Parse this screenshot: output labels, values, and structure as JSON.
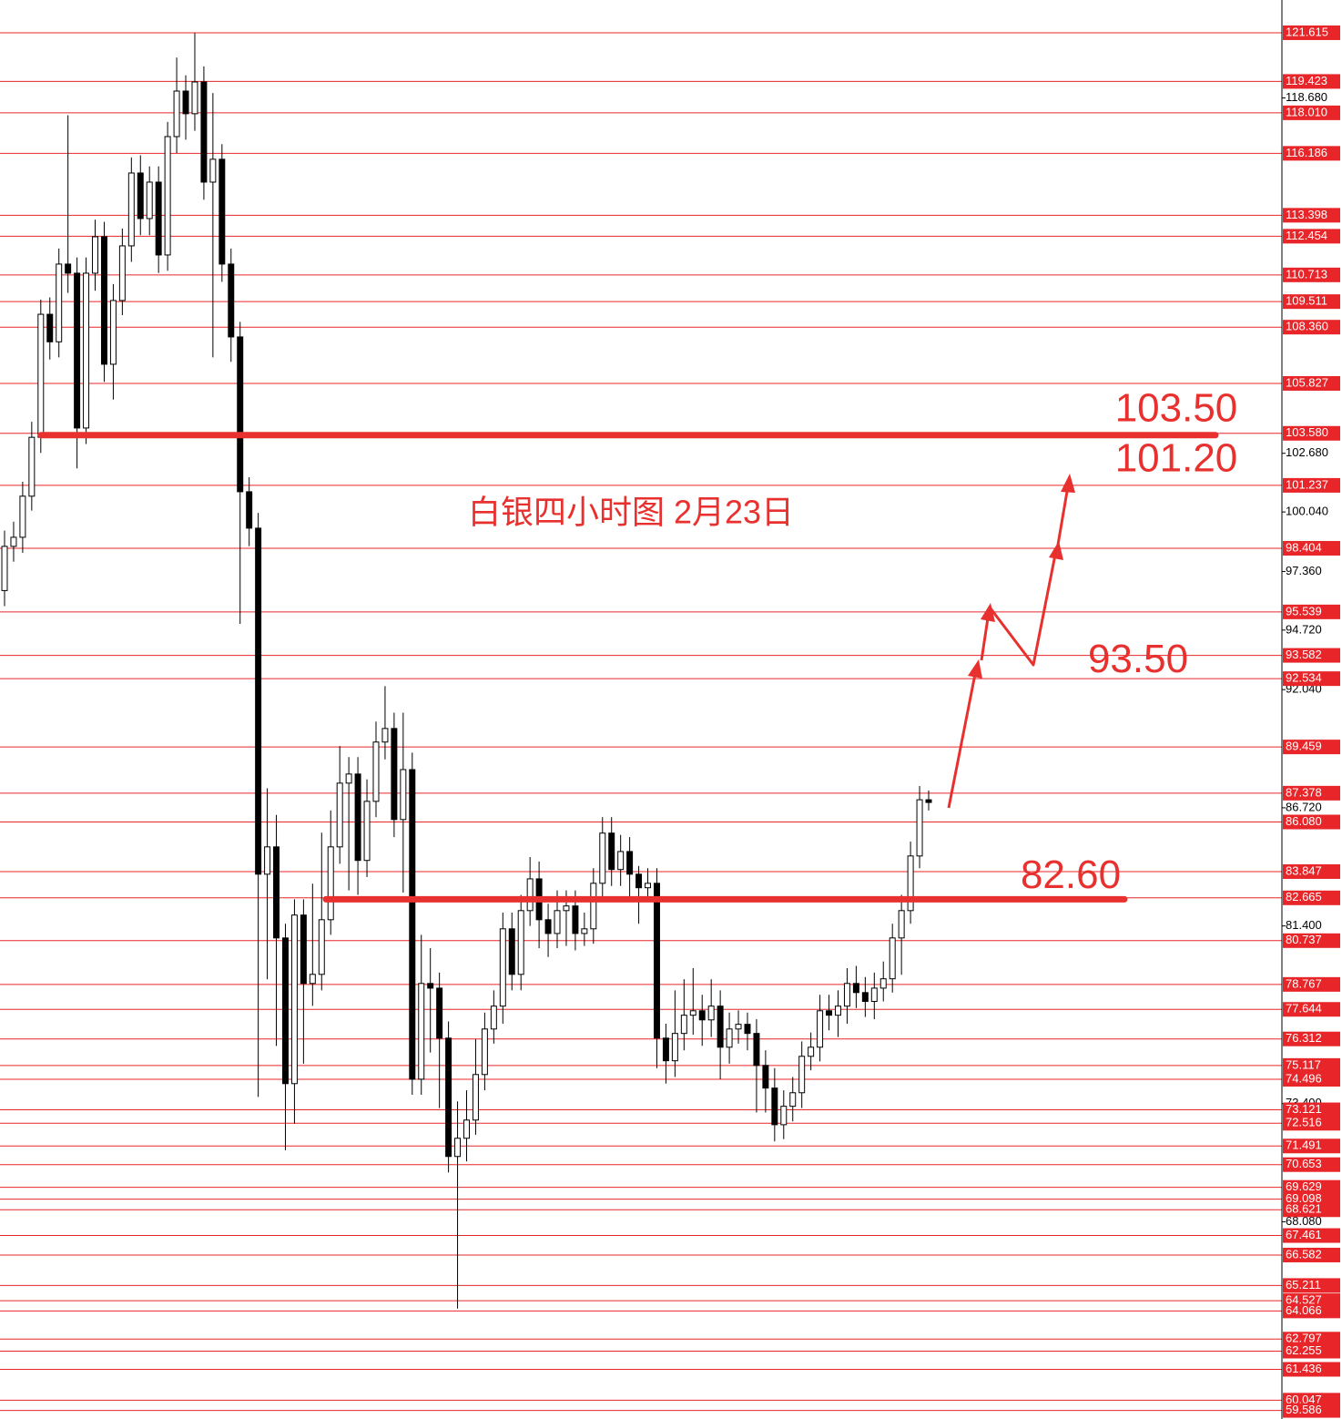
{
  "chart_data": {
    "type": "candlestick",
    "title": "白银四小时图 2月23日",
    "up_color": "#ffffff",
    "down_color": "#000000",
    "level_color": "#e8262a",
    "ylim": [
      59.2,
      123.09
    ],
    "yticks": [
      {
        "value": 118.68,
        "label": "118.680"
      },
      {
        "value": 102.68,
        "label": "102.680"
      },
      {
        "value": 100.04,
        "label": "100.040"
      },
      {
        "value": 97.36,
        "label": "97.360"
      },
      {
        "value": 94.72,
        "label": "94.720"
      },
      {
        "value": 92.04,
        "label": "92.040"
      },
      {
        "value": 86.72,
        "label": "86.720"
      },
      {
        "value": 81.4,
        "label": "81.400"
      },
      {
        "value": 73.4,
        "label": "73.400"
      },
      {
        "value": 68.08,
        "label": "68.080"
      }
    ],
    "levels": [
      121.615,
      119.423,
      {
        "value": 118.01,
        "label": "118.010"
      },
      116.186,
      113.398,
      112.454,
      110.713,
      109.511,
      {
        "value": 108.36,
        "label": "108.360"
      },
      105.827,
      {
        "value": 103.58,
        "label": "103.580"
      },
      101.237,
      98.404,
      95.539,
      93.582,
      92.534,
      89.459,
      87.378,
      {
        "value": 86.08,
        "label": "86.080"
      },
      83.847,
      82.665,
      80.737,
      78.767,
      77.644,
      76.312,
      75.117,
      74.496,
      73.121,
      72.516,
      71.491,
      70.653,
      69.629,
      69.098,
      68.621,
      67.461,
      66.582,
      65.211,
      64.527,
      64.066,
      62.797,
      62.255,
      61.436,
      60.047,
      59.586
    ],
    "annotations": [
      {
        "label": "103.50",
        "value": 103.5,
        "line": true
      },
      {
        "label": "101.20",
        "value": 101.2,
        "line": false
      },
      {
        "label": "93.50",
        "value": 93.5,
        "line": false
      },
      {
        "label": "82.60",
        "value": 82.6,
        "line": true
      }
    ],
    "open": [
      96.5,
      98.49,
      98.9,
      100.75,
      103.4,
      108.94,
      107.7,
      111.2,
      110.79,
      103.82,
      110.79,
      112.43,
      106.69,
      109.56,
      112.02,
      115.3,
      113.25,
      114.89,
      111.61,
      116.94,
      118.99,
      117.97,
      119.4,
      114.89,
      115.92,
      111.2,
      107.92,
      100.95,
      99.31,
      83.73,
      84.96,
      80.86,
      74.3,
      81.89,
      78.81,
      79.22,
      81.68,
      84.96,
      87.83,
      88.24,
      84.35,
      87.01,
      89.68,
      90.29,
      86.19,
      88.44,
      74.5,
      78.81,
      78.6,
      76.35,
      71.02,
      71.84,
      72.66,
      74.71,
      76.76,
      77.79,
      81.27,
      79.22,
      82.09,
      83.52,
      81.68,
      81.06,
      82.09,
      82.3,
      81.06,
      81.27,
      83.32,
      85.58,
      83.94,
      84.75,
      83.73,
      83.12,
      83.32,
      76.35,
      75.33,
      76.56,
      77.38,
      77.58,
      77.17,
      77.79,
      75.94,
      76.76,
      76.97,
      76.56,
      75.12,
      74.1,
      72.45,
      73.28,
      73.89,
      75.53,
      75.94,
      77.58,
      77.38,
      77.79,
      78.81,
      78.4,
      78.0,
      78.6,
      79.02,
      80.86,
      82.09,
      84.55,
      87.08
    ],
    "high": [
      99.2,
      99.6,
      101.4,
      104.1,
      109.6,
      109.7,
      111.9,
      117.9,
      111.5,
      111.5,
      113.2,
      113.1,
      110.3,
      112.8,
      116.0,
      116.1,
      115.6,
      115.6,
      117.6,
      120.5,
      119.7,
      121.6,
      120.1,
      118.9,
      116.6,
      111.9,
      108.6,
      101.6,
      100.0,
      87.6,
      86.4,
      81.5,
      82.6,
      82.6,
      83.3,
      85.6,
      86.6,
      89.5,
      89.0,
      89.0,
      88.0,
      90.6,
      92.2,
      91.0,
      91.0,
      89.2,
      81.0,
      80.4,
      79.3,
      77.1,
      73.5,
      74.0,
      76.3,
      77.5,
      78.5,
      82.0,
      82.0,
      82.8,
      84.5,
      84.3,
      82.4,
      83.0,
      83.0,
      83.0,
      82.0,
      84.0,
      86.3,
      86.3,
      85.5,
      85.4,
      84.1,
      84.0,
      84.0,
      77.0,
      78.5,
      79.0,
      79.5,
      78.3,
      79.0,
      78.5,
      77.5,
      77.6,
      77.5,
      77.2,
      75.8,
      75.0,
      74.0,
      74.6,
      76.2,
      76.6,
      78.3,
      78.3,
      78.5,
      79.5,
      79.6,
      79.1,
      79.3,
      79.8,
      81.5,
      82.8,
      85.2,
      87.7,
      87.5
    ],
    "low": [
      95.8,
      97.8,
      98.2,
      100.1,
      102.7,
      106.9,
      107.0,
      109.9,
      102.0,
      103.1,
      110.0,
      105.9,
      105.1,
      108.9,
      111.3,
      112.5,
      112.5,
      110.8,
      110.9,
      116.2,
      116.8,
      117.2,
      114.1,
      107.0,
      110.4,
      106.8,
      95.0,
      98.5,
      73.7,
      79.0,
      76.0,
      71.3,
      72.5,
      75.2,
      77.8,
      78.5,
      81.0,
      84.2,
      83.0,
      82.8,
      83.6,
      86.3,
      88.9,
      85.4,
      82.9,
      73.8,
      73.8,
      75.7,
      73.2,
      70.3,
      64.17,
      70.8,
      72.0,
      74.0,
      76.1,
      77.0,
      78.5,
      78.5,
      81.4,
      80.4,
      80.0,
      80.4,
      80.5,
      80.3,
      80.5,
      80.6,
      82.6,
      83.2,
      83.2,
      82.7,
      81.5,
      82.5,
      75.0,
      74.3,
      74.6,
      75.8,
      76.5,
      76.0,
      76.4,
      74.5,
      75.2,
      76.1,
      75.8,
      73.0,
      73.0,
      71.7,
      71.8,
      72.6,
      73.2,
      74.9,
      75.3,
      76.7,
      76.4,
      77.0,
      77.7,
      77.3,
      77.2,
      78.0,
      78.4,
      79.2,
      81.5,
      84.0,
      86.6
    ],
    "close": [
      98.49,
      98.9,
      100.75,
      103.4,
      108.94,
      107.7,
      111.2,
      110.79,
      103.82,
      110.79,
      112.43,
      106.69,
      109.56,
      112.02,
      115.3,
      113.25,
      114.89,
      111.61,
      116.94,
      118.99,
      117.97,
      119.4,
      114.89,
      115.92,
      111.2,
      107.92,
      100.95,
      99.31,
      83.73,
      84.96,
      80.86,
      74.3,
      81.89,
      78.81,
      79.22,
      81.68,
      84.96,
      87.83,
      88.24,
      84.35,
      87.01,
      89.68,
      90.29,
      86.19,
      88.44,
      74.5,
      78.81,
      78.6,
      76.35,
      71.02,
      71.84,
      72.66,
      74.71,
      76.76,
      77.79,
      81.27,
      79.22,
      82.09,
      83.52,
      81.68,
      81.06,
      82.09,
      82.3,
      81.06,
      81.27,
      83.32,
      85.58,
      83.94,
      84.75,
      83.73,
      83.12,
      83.32,
      76.35,
      75.33,
      76.56,
      77.38,
      77.58,
      77.17,
      77.79,
      75.94,
      76.76,
      76.97,
      76.56,
      75.12,
      74.1,
      72.45,
      73.28,
      73.89,
      75.53,
      75.94,
      77.58,
      77.38,
      77.79,
      78.81,
      78.4,
      78.0,
      78.6,
      79.02,
      80.86,
      82.09,
      84.55,
      87.08,
      86.96
    ]
  }
}
